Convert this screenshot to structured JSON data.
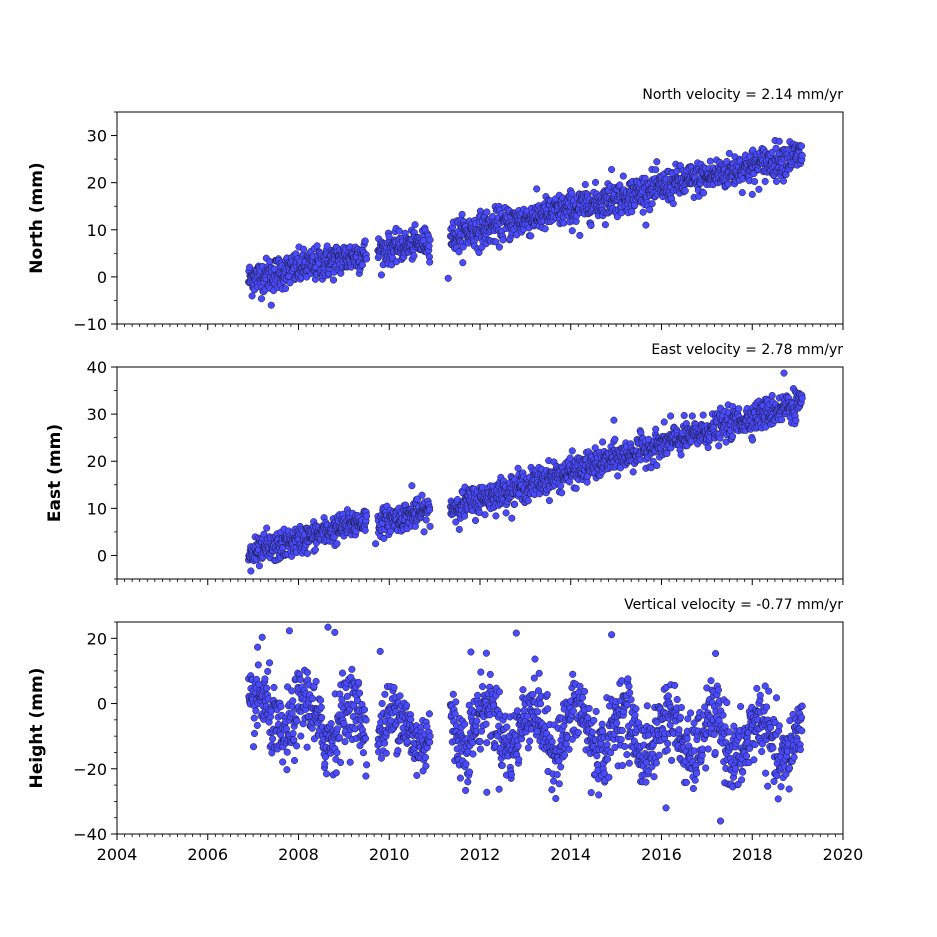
{
  "chart_data": {
    "type": "scatter",
    "marker_color": "#4a4aff",
    "marker_edge": "#1a1a3a",
    "x_ticks": [
      2004,
      2006,
      2008,
      2010,
      2012,
      2014,
      2016,
      2018,
      2020
    ],
    "xlim": [
      2004,
      2020
    ],
    "panels": [
      {
        "key": "north",
        "title": "North velocity = 2.14 mm/yr",
        "ylabel": "North (mm)",
        "ylim": [
          -10,
          35
        ],
        "y_ticks": [
          -10,
          0,
          10,
          20,
          30
        ],
        "segments": [
          {
            "t0": 2006.9,
            "t1": 2009.5,
            "y0": -0.5,
            "y1": 5.0,
            "noise": 1.8,
            "n": 340
          },
          {
            "t0": 2009.75,
            "t1": 2010.9,
            "y0": 5.5,
            "y1": 7.5,
            "noise": 1.5,
            "n": 150
          },
          {
            "t0": 2011.35,
            "t1": 2019.1,
            "y0": 8.5,
            "y1": 26.0,
            "noise": 1.8,
            "n": 1000
          }
        ],
        "outliers": [
          [
            2011.3,
            -0.3
          ],
          [
            2014.9,
            22.8
          ],
          [
            2007.4,
            -6.0
          ],
          [
            2018.0,
            17.5
          ],
          [
            2014.2,
            8.8
          ]
        ]
      },
      {
        "key": "east",
        "title": "East velocity = 2.78 mm/yr",
        "ylabel": "East (mm)",
        "ylim": [
          -5,
          40
        ],
        "y_ticks": [
          0,
          10,
          20,
          30,
          40
        ],
        "segments": [
          {
            "t0": 2006.9,
            "t1": 2009.5,
            "y0": 0.0,
            "y1": 7.5,
            "noise": 1.5,
            "n": 340
          },
          {
            "t0": 2009.75,
            "t1": 2010.9,
            "y0": 7.0,
            "y1": 9.5,
            "noise": 1.4,
            "n": 150
          },
          {
            "t0": 2011.35,
            "t1": 2019.1,
            "y0": 10.0,
            "y1": 32.5,
            "noise": 1.6,
            "n": 1000
          }
        ],
        "outliers": [
          [
            2018.7,
            38.7
          ],
          [
            2010.5,
            14.8
          ],
          [
            2016.2,
            29.6
          ],
          [
            2014.95,
            28.7
          ],
          [
            2009.7,
            2.5
          ],
          [
            2007.3,
            5.8
          ],
          [
            2006.95,
            -3.3
          ]
        ]
      },
      {
        "key": "height",
        "title": "Vertical velocity = -0.77 mm/yr",
        "ylabel": "Height (mm)",
        "ylim": [
          -40,
          25
        ],
        "y_ticks": [
          -40,
          -20,
          0,
          20
        ],
        "segments": [
          {
            "t0": 2006.9,
            "t1": 2009.5,
            "y0": -4.0,
            "y1": -6.0,
            "noise": 5.5,
            "n": 340,
            "amp": 6.0
          },
          {
            "t0": 2009.75,
            "t1": 2010.9,
            "y0": -7.0,
            "y1": -8.0,
            "noise": 5.0,
            "n": 150,
            "amp": 5.0
          },
          {
            "t0": 2011.35,
            "t1": 2019.1,
            "y0": -6.0,
            "y1": -12.0,
            "noise": 5.5,
            "n": 1000,
            "amp": 6.5
          }
        ],
        "outliers": [
          [
            2007.2,
            20.3
          ],
          [
            2007.8,
            22.3
          ],
          [
            2008.65,
            23.4
          ],
          [
            2008.8,
            21.8
          ],
          [
            2012.8,
            21.6
          ],
          [
            2014.9,
            21.1
          ],
          [
            2009.8,
            16.0
          ],
          [
            2011.8,
            15.8
          ],
          [
            2012.15,
            -27.2
          ],
          [
            2014.45,
            -27.3
          ],
          [
            2017.3,
            -36.0
          ],
          [
            2016.1,
            -32.0
          ]
        ]
      }
    ]
  }
}
